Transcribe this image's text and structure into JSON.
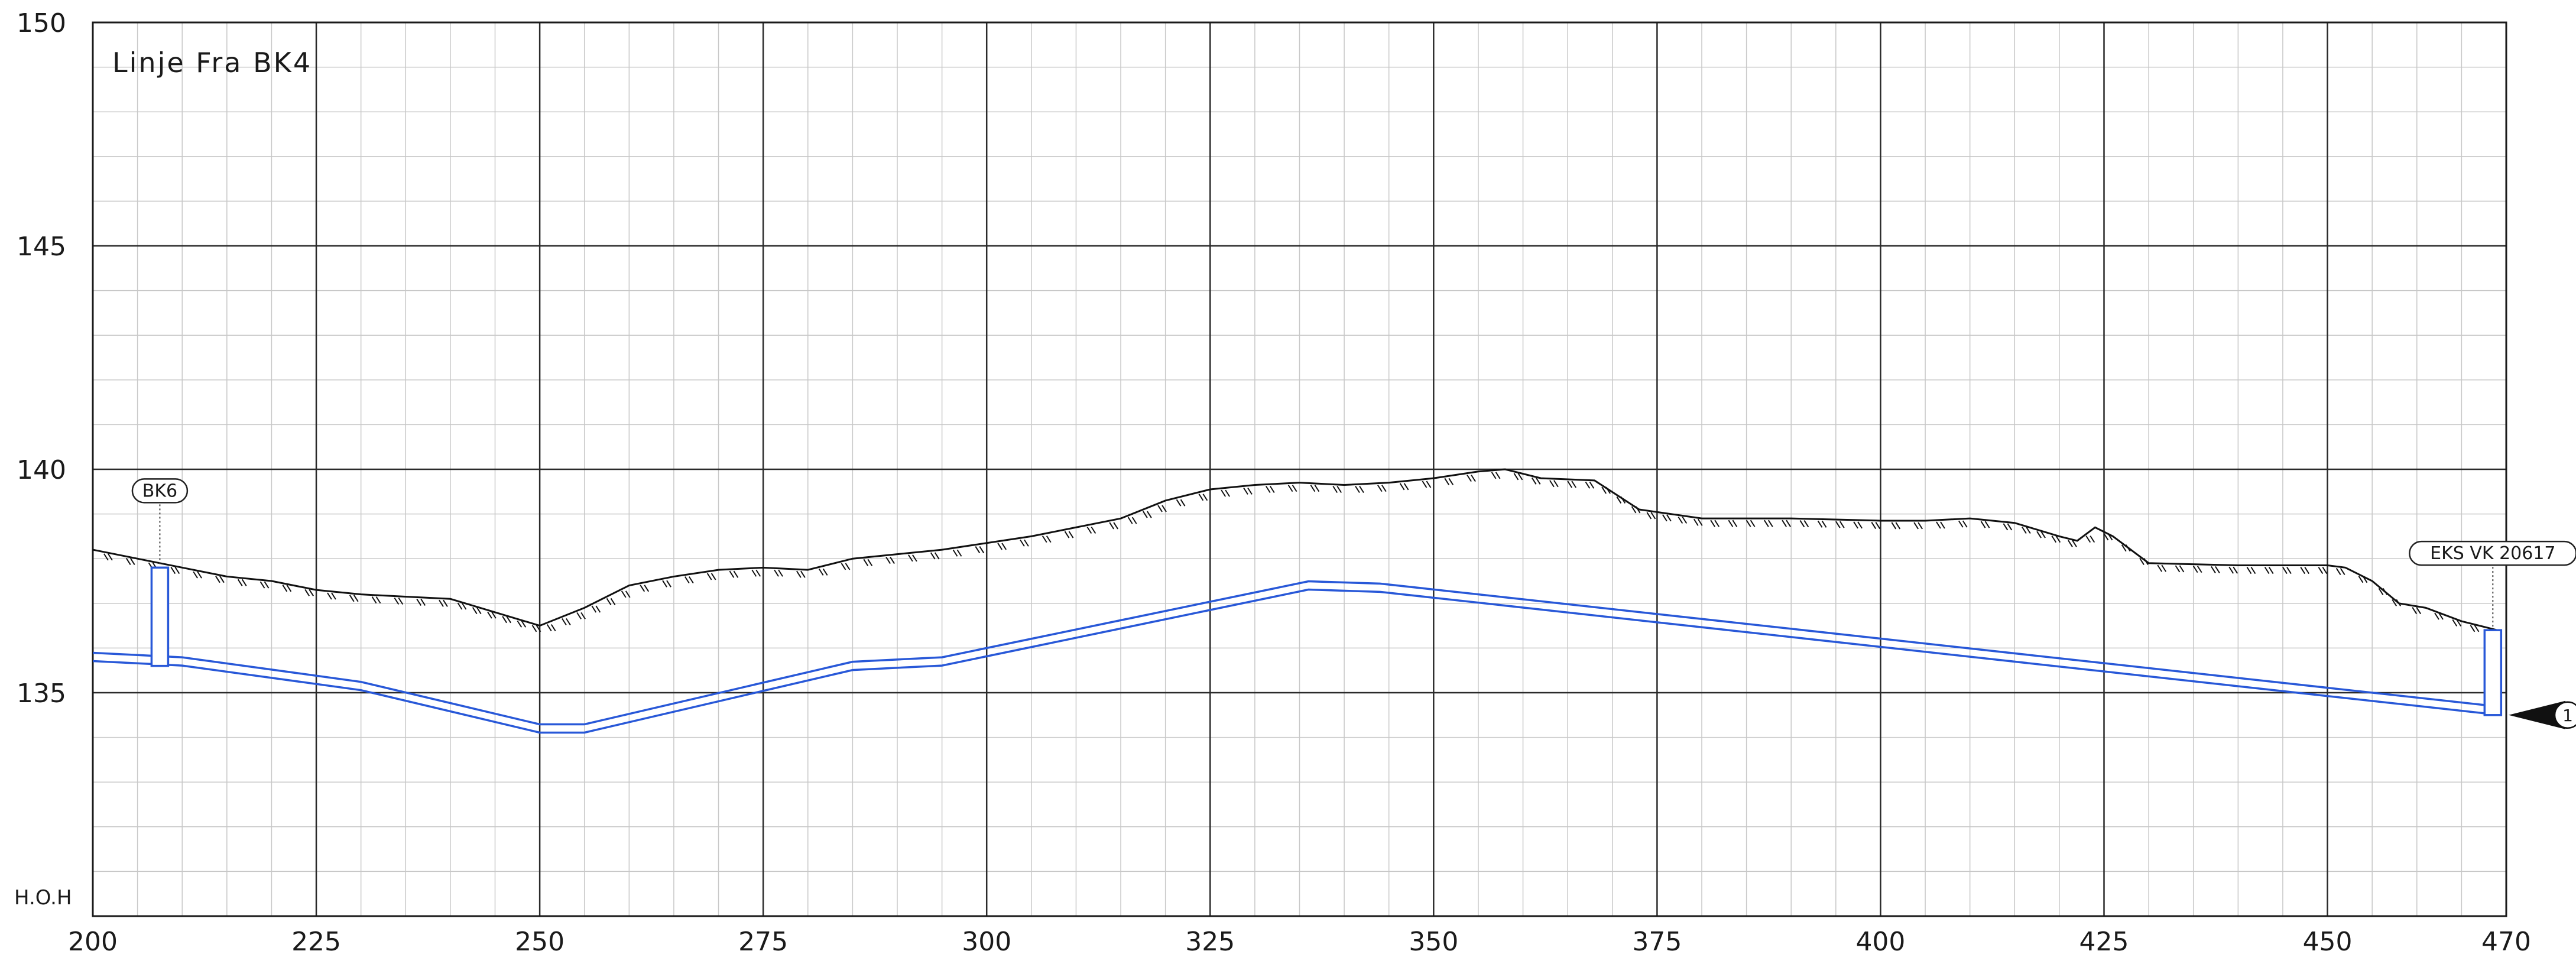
{
  "chart_data": {
    "type": "line",
    "title": "Linje Fra BK4",
    "ylabel": "H.O.H",
    "xlim": [
      200,
      470
    ],
    "ylim": [
      130,
      150
    ],
    "x_major_ticks": [
      200,
      225,
      250,
      275,
      300,
      325,
      350,
      375,
      400,
      425,
      450,
      470
    ],
    "x_tick_labels": [
      "200",
      "225",
      "250",
      "275",
      "300",
      "325",
      "350",
      "375",
      "400",
      "425",
      "450",
      "470"
    ],
    "y_major_ticks": [
      135,
      140,
      145,
      150
    ],
    "y_tick_labels": [
      "135",
      "140",
      "145",
      "150"
    ],
    "grid": true,
    "minor_grid_step": {
      "x": 5,
      "y": 1
    },
    "terrain": {
      "points": [
        [
          200,
          138.2
        ],
        [
          205,
          138.0
        ],
        [
          210,
          137.8
        ],
        [
          215,
          137.6
        ],
        [
          220,
          137.5
        ],
        [
          225,
          137.3
        ],
        [
          230,
          137.2
        ],
        [
          235,
          137.15
        ],
        [
          240,
          137.1
        ],
        [
          245,
          136.8
        ],
        [
          250,
          136.5
        ],
        [
          255,
          136.9
        ],
        [
          260,
          137.4
        ],
        [
          265,
          137.6
        ],
        [
          270,
          137.75
        ],
        [
          275,
          137.8
        ],
        [
          280,
          137.75
        ],
        [
          285,
          138.0
        ],
        [
          290,
          138.1
        ],
        [
          295,
          138.2
        ],
        [
          300,
          138.35
        ],
        [
          305,
          138.5
        ],
        [
          310,
          138.7
        ],
        [
          315,
          138.9
        ],
        [
          320,
          139.3
        ],
        [
          325,
          139.55
        ],
        [
          330,
          139.65
        ],
        [
          335,
          139.7
        ],
        [
          340,
          139.65
        ],
        [
          345,
          139.7
        ],
        [
          350,
          139.8
        ],
        [
          355,
          139.95
        ],
        [
          358,
          140.0
        ],
        [
          362,
          139.8
        ],
        [
          368,
          139.75
        ],
        [
          373,
          139.1
        ],
        [
          380,
          138.9
        ],
        [
          390,
          138.9
        ],
        [
          400,
          138.85
        ],
        [
          405,
          138.85
        ],
        [
          410,
          138.9
        ],
        [
          415,
          138.8
        ],
        [
          420,
          138.5
        ],
        [
          422,
          138.4
        ],
        [
          424,
          138.7
        ],
        [
          426,
          138.5
        ],
        [
          430,
          137.9
        ],
        [
          440,
          137.85
        ],
        [
          450,
          137.85
        ],
        [
          452,
          137.8
        ],
        [
          455,
          137.5
        ],
        [
          458,
          137.0
        ],
        [
          461,
          136.9
        ],
        [
          465,
          136.6
        ],
        [
          469,
          136.4
        ]
      ]
    },
    "pipe": {
      "points": [
        [
          200,
          135.8
        ],
        [
          205,
          135.75
        ],
        [
          210,
          135.7
        ],
        [
          230,
          135.15
        ],
        [
          250,
          134.2
        ],
        [
          255,
          134.2
        ],
        [
          285,
          135.6
        ],
        [
          295,
          135.7
        ],
        [
          336,
          137.4
        ],
        [
          344,
          137.35
        ],
        [
          469,
          134.6
        ]
      ],
      "color": "#2858d8"
    },
    "structures": [
      {
        "label": "BK6",
        "x": 207.5,
        "top": 137.8,
        "bottom": 135.6
      },
      {
        "label": "EKS VK 20617",
        "x": 468.5,
        "top": 136.4,
        "bottom": 134.5
      }
    ],
    "level_marker": {
      "label": "1",
      "y": 134.5
    }
  }
}
